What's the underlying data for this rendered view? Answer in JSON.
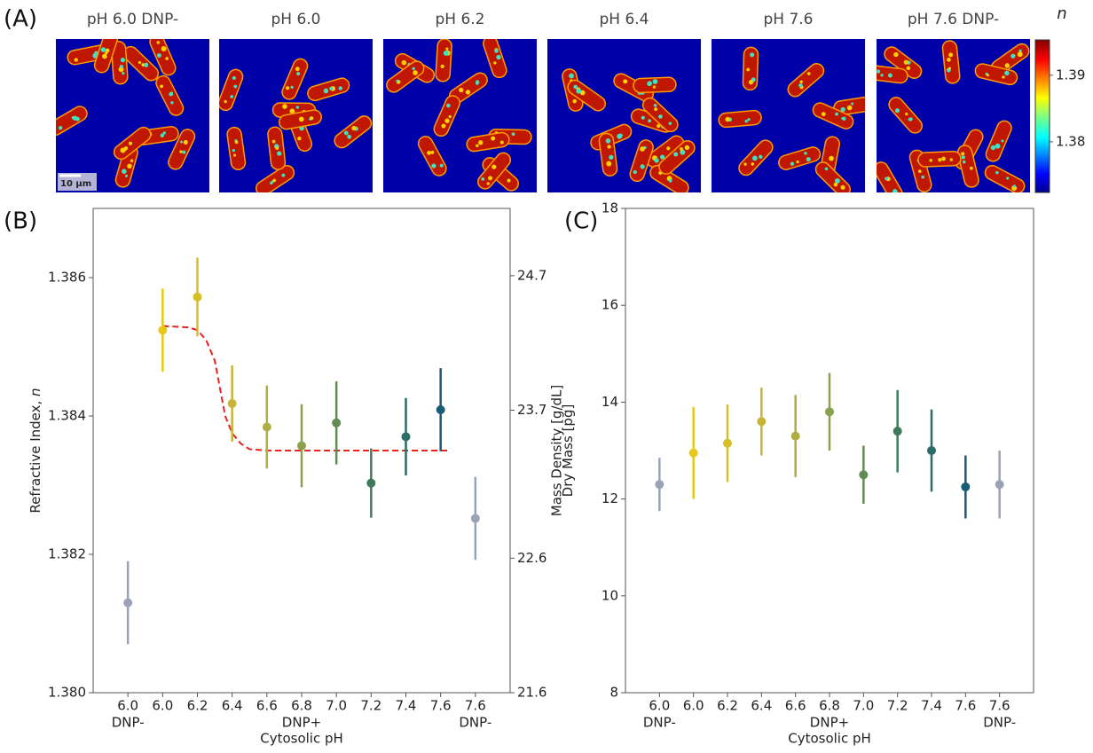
{
  "panel_a": {
    "panel": "(A)",
    "image_titles": [
      "pH 6.0 DNP-",
      "pH 6.0",
      "pH 6.2",
      "pH 6.4",
      "pH 7.6",
      "pH 7.6 DNP-"
    ],
    "scale_bar": "10 µm",
    "colorbar": {
      "label": "n",
      "lim": [
        1.3724,
        1.3953
      ],
      "ticks": [
        1.38,
        1.39
      ]
    }
  },
  "chart_data": [
    {
      "type": "errorbar",
      "panel": "(B)",
      "categories": [
        "6.0",
        "6.0",
        "6.2",
        "6.4",
        "6.6",
        "6.8",
        "7.0",
        "7.2",
        "7.4",
        "7.6",
        "7.6"
      ],
      "category_notes": [
        "DNP-",
        null,
        null,
        null,
        null,
        null,
        null,
        null,
        null,
        null,
        "DNP-"
      ],
      "group_note": "DNP+",
      "xlabel": "Cytosolic pH",
      "ylabel": "Refractive Index, ",
      "ylabel_symbol": "n",
      "y2label": "Mass Density [g/dL]",
      "values": [
        1.3813,
        1.38524,
        1.38572,
        1.38418,
        1.38384,
        1.38357,
        1.3839,
        1.38303,
        1.3837,
        1.38409,
        1.38252
      ],
      "errors": [
        0.0006,
        0.0006,
        0.00057,
        0.00055,
        0.0006,
        0.0006,
        0.0006,
        0.0005,
        0.00056,
        0.0006,
        0.0006
      ],
      "colors": [
        "#9aa3b5",
        "#e9c81a",
        "#d6bf26",
        "#c6b536",
        "#aeae42",
        "#8aa24e",
        "#638c55",
        "#3f7b5b",
        "#2b6d6a",
        "#1a5b76",
        "#9aa3b5"
      ],
      "fit": {
        "color": "#e8231e",
        "x": [
          6.0,
          6.15,
          6.2,
          6.25,
          6.3,
          6.33,
          6.36,
          6.4,
          6.45,
          6.5,
          6.6,
          7.65
        ],
        "values": [
          1.3853,
          1.38528,
          1.38524,
          1.3851,
          1.3848,
          1.3844,
          1.384,
          1.38375,
          1.3836,
          1.38352,
          1.3835,
          1.3835
        ]
      },
      "ylim": [
        1.38,
        1.387
      ],
      "yticks": [
        {
          "value": 1.38,
          "label": "1.380"
        },
        1.382,
        1.384,
        1.386
      ],
      "y2lim": [
        21.6,
        25.2
      ],
      "y2ticks": [
        21.6,
        22.6,
        23.7,
        24.7
      ]
    },
    {
      "type": "errorbar",
      "panel": "(C)",
      "categories": [
        "6.0",
        "6.0",
        "6.2",
        "6.4",
        "6.6",
        "6.8",
        "7.0",
        "7.2",
        "7.4",
        "7.6",
        "7.6"
      ],
      "category_notes": [
        "DNP-",
        null,
        null,
        null,
        null,
        null,
        null,
        null,
        null,
        null,
        "DNP-"
      ],
      "group_note": "DNP+",
      "xlabel": "Cytosolic pH",
      "ylabel": "Dry Mass [pg]",
      "values": [
        12.3,
        12.95,
        13.15,
        13.6,
        13.3,
        13.8,
        12.5,
        13.4,
        13.0,
        12.25,
        12.3
      ],
      "errors": [
        0.55,
        0.95,
        0.8,
        0.7,
        0.85,
        0.8,
        0.6,
        0.85,
        0.85,
        0.65,
        0.7
      ],
      "colors": [
        "#9aa3b5",
        "#e9c81a",
        "#d6bf26",
        "#c6b536",
        "#aeae42",
        "#8aa24e",
        "#638c55",
        "#3f7b5b",
        "#2b6d6a",
        "#1a5b76",
        "#9aa3b5"
      ],
      "ylim": [
        8,
        18
      ],
      "yticks": [
        8,
        10,
        12,
        14,
        16,
        18
      ]
    }
  ]
}
